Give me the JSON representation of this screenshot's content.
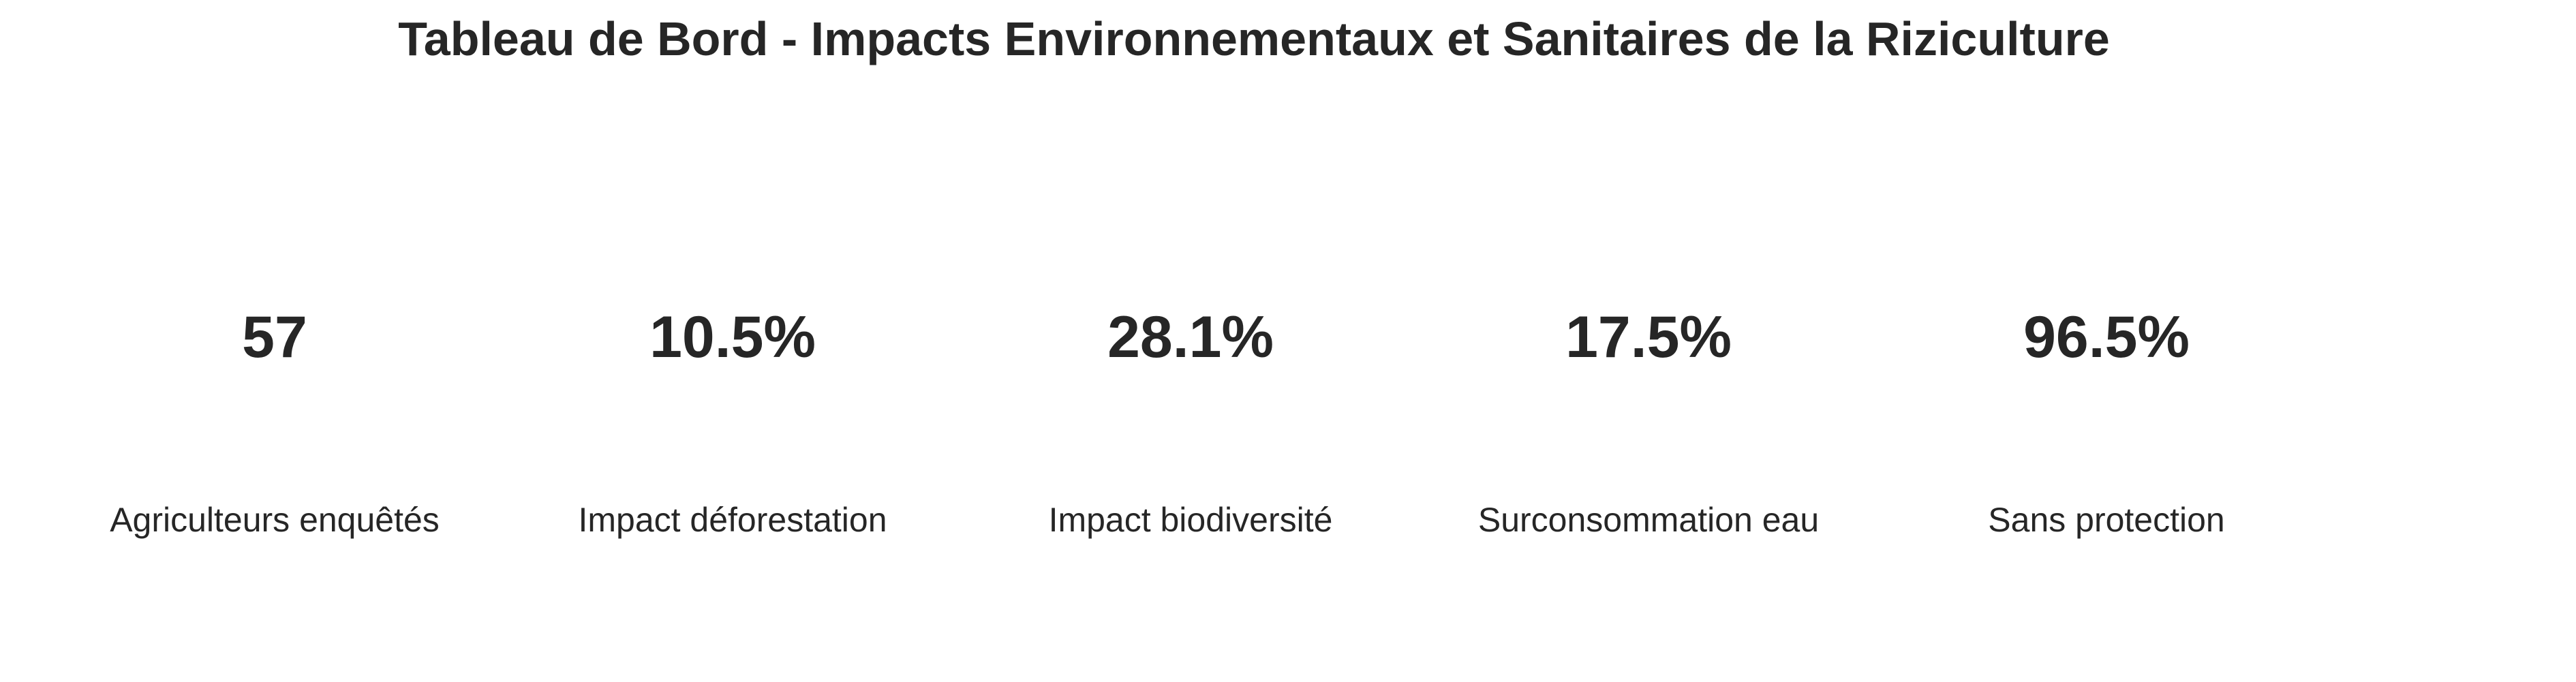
{
  "chart_data": {
    "type": "table",
    "title": "Tableau de Bord - Impacts Environnementaux et Sanitaires de la Riziculture",
    "kpis": [
      {
        "value": "57",
        "label": "Agriculteurs enquêtés"
      },
      {
        "value": "10.5%",
        "label": "Impact déforestation"
      },
      {
        "value": "28.1%",
        "label": "Impact biodiversité"
      },
      {
        "value": "17.5%",
        "label": "Surconsommation eau"
      },
      {
        "value": "96.5%",
        "label": "Sans protection"
      }
    ]
  },
  "colors": {
    "text": "#262626",
    "background": "#ffffff"
  }
}
